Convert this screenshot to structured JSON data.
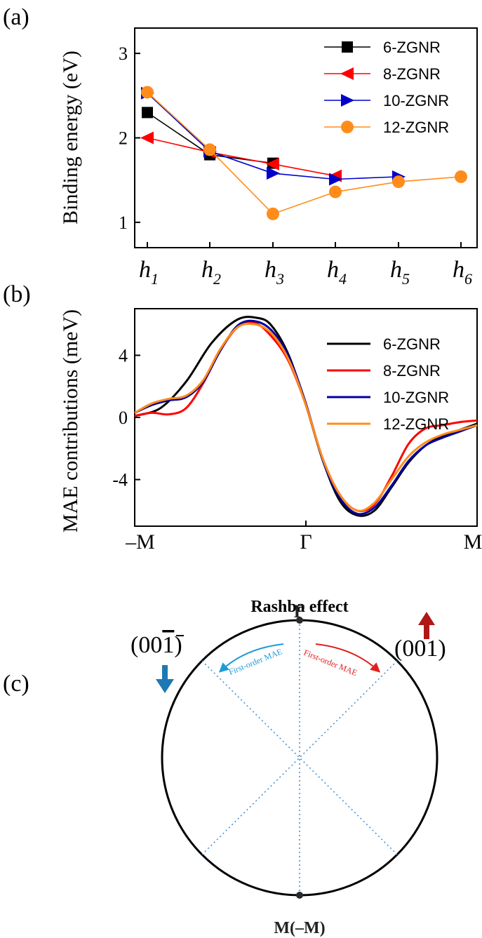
{
  "panels": {
    "a": {
      "label": "(a)"
    },
    "b": {
      "label": "(b)"
    },
    "c": {
      "label": "(c)"
    }
  },
  "chart_data": [
    {
      "type": "line",
      "panel": "a",
      "ylabel": "Binding energy (eV)",
      "xlabel": "",
      "categories": [
        {
          "base": "h",
          "sub": "1"
        },
        {
          "base": "h",
          "sub": "2"
        },
        {
          "base": "h",
          "sub": "3"
        },
        {
          "base": "h",
          "sub": "4"
        },
        {
          "base": "h",
          "sub": "5"
        },
        {
          "base": "h",
          "sub": "6"
        }
      ],
      "yticks": [
        "1",
        "2",
        "3"
      ],
      "ylim": [
        0.7,
        3.3
      ],
      "legend": "top-right",
      "series": [
        {
          "name": "6-ZGNR",
          "color": "#000000",
          "marker": "square",
          "values": [
            2.3,
            1.8,
            1.7,
            null,
            null,
            null
          ]
        },
        {
          "name": "8-ZGNR",
          "color": "#ff0000",
          "marker": "triangle-left",
          "values": [
            2.0,
            1.83,
            1.69,
            1.55,
            null,
            null
          ]
        },
        {
          "name": "10-ZGNR",
          "color": "#0000cc",
          "marker": "triangle-right",
          "values": [
            2.53,
            1.84,
            1.58,
            1.51,
            1.54,
            null
          ]
        },
        {
          "name": "12-ZGNR",
          "color": "#ff8c1a",
          "marker": "circle",
          "values": [
            2.54,
            1.86,
            1.1,
            1.36,
            1.48,
            1.54
          ]
        }
      ]
    },
    {
      "type": "line",
      "panel": "b",
      "ylabel": "MAE contributions (meV)",
      "xlabel": "",
      "xticks": [
        "–M",
        "Γ",
        "M"
      ],
      "yticks": [
        "-4",
        "0",
        "4"
      ],
      "ylim": [
        -7,
        7
      ],
      "legend": "top-right",
      "series": [
        {
          "name": "6-ZGNR",
          "color": "#000000",
          "x": [
            -1,
            -0.85,
            -0.7,
            -0.55,
            -0.4,
            -0.28,
            -0.2,
            -0.1,
            0,
            0.1,
            0.2,
            0.3,
            0.4,
            0.5,
            0.6,
            0.7,
            0.8,
            0.9,
            1
          ],
          "y": [
            0.1,
            0.6,
            2.3,
            4.8,
            6.3,
            6.4,
            5.9,
            4.0,
            0.8,
            -2.8,
            -5.4,
            -6.3,
            -6.0,
            -4.5,
            -2.9,
            -1.8,
            -1.2,
            -0.8,
            -0.4
          ]
        },
        {
          "name": "8-ZGNR",
          "color": "#ff0000",
          "x": [
            -1,
            -0.9,
            -0.8,
            -0.7,
            -0.6,
            -0.5,
            -0.4,
            -0.3,
            -0.2,
            -0.1,
            0,
            0.1,
            0.2,
            0.3,
            0.4,
            0.5,
            0.6,
            0.7,
            0.8,
            0.9,
            1
          ],
          "y": [
            0.1,
            0.3,
            0.2,
            0.6,
            2.2,
            4.3,
            5.8,
            6.1,
            5.2,
            3.6,
            0.8,
            -2.7,
            -5.0,
            -6.0,
            -5.6,
            -3.8,
            -1.7,
            -0.7,
            -0.5,
            -0.3,
            -0.2
          ]
        },
        {
          "name": "10-ZGNR",
          "color": "#0000a0",
          "x": [
            -1,
            -0.9,
            -0.8,
            -0.7,
            -0.6,
            -0.5,
            -0.4,
            -0.3,
            -0.2,
            -0.1,
            0,
            0.1,
            0.2,
            0.3,
            0.4,
            0.5,
            0.6,
            0.7,
            0.8,
            0.9,
            1
          ],
          "y": [
            0.3,
            0.8,
            1.1,
            1.3,
            2.3,
            4.3,
            5.9,
            6.2,
            5.6,
            3.9,
            0.9,
            -2.8,
            -5.2,
            -6.2,
            -5.8,
            -4.4,
            -2.8,
            -1.8,
            -1.3,
            -0.9,
            -0.5
          ]
        },
        {
          "name": "12-ZGNR",
          "color": "#ff8c1a",
          "x": [
            -1,
            -0.9,
            -0.8,
            -0.7,
            -0.6,
            -0.5,
            -0.4,
            -0.3,
            -0.2,
            -0.1,
            0,
            0.1,
            0.2,
            0.3,
            0.4,
            0.5,
            0.6,
            0.7,
            0.8,
            0.9,
            1
          ],
          "y": [
            0.3,
            0.9,
            1.2,
            1.4,
            2.4,
            4.4,
            5.8,
            6.0,
            5.4,
            3.7,
            0.8,
            -2.7,
            -5.0,
            -6.0,
            -5.5,
            -4.0,
            -2.5,
            -1.6,
            -1.1,
            -0.8,
            -0.5
          ]
        }
      ]
    }
  ],
  "diagram": {
    "title": "Rashba effect",
    "top_label": "Γ",
    "bottom_label": "M(–M)",
    "left_label": "(00",
    "left_label_bar": "1",
    "left_label_close": ")",
    "right_label": "(001)",
    "left_arrow_label": "First-order MAE",
    "right_arrow_label": "First-order MAE",
    "colors": {
      "blue": "#1e78b4",
      "red": "#e02020",
      "dark_red": "#b01818",
      "dotted": "#4a90d0"
    }
  }
}
